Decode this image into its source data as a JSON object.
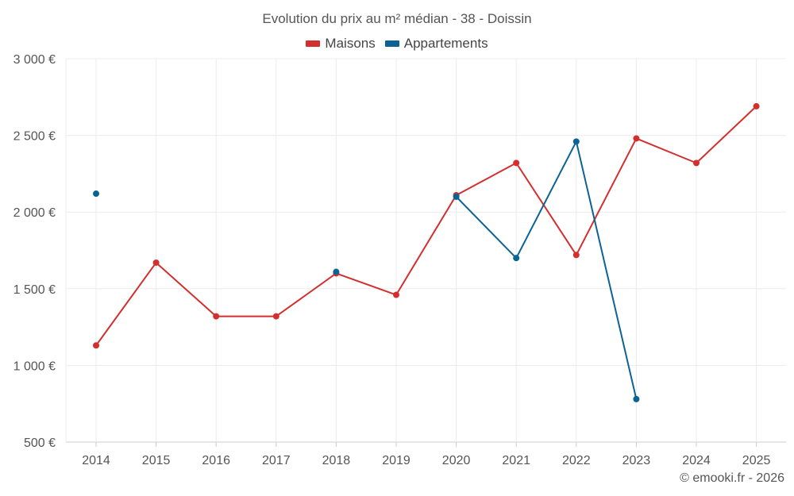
{
  "chart_data": {
    "type": "line",
    "title": "Evolution du prix au m² médian - 38 - Doissin",
    "categories": [
      "2014",
      "2015",
      "2016",
      "2017",
      "2018",
      "2019",
      "2020",
      "2021",
      "2022",
      "2023",
      "2024",
      "2025"
    ],
    "ylim": [
      500,
      3000
    ],
    "yticks": [
      500,
      1000,
      1500,
      2000,
      2500,
      3000
    ],
    "ytick_labels": [
      "500 €",
      "1 000 €",
      "1 500 €",
      "2 000 €",
      "2 500 €",
      "3 000 €"
    ],
    "xlabel": "",
    "ylabel": "",
    "grid": true,
    "legend_position": "top-center",
    "series": [
      {
        "name": "Maisons",
        "color": "#d32f2f",
        "values": [
          1130,
          1670,
          1320,
          1320,
          1600,
          1460,
          2110,
          2320,
          1720,
          2480,
          2320,
          2690
        ]
      },
      {
        "name": "Appartements",
        "color": "#0b6394",
        "values": [
          2120,
          null,
          null,
          null,
          1610,
          null,
          2100,
          1700,
          2460,
          780,
          null,
          null
        ]
      }
    ]
  },
  "credit": "© emooki.fr - 2026"
}
